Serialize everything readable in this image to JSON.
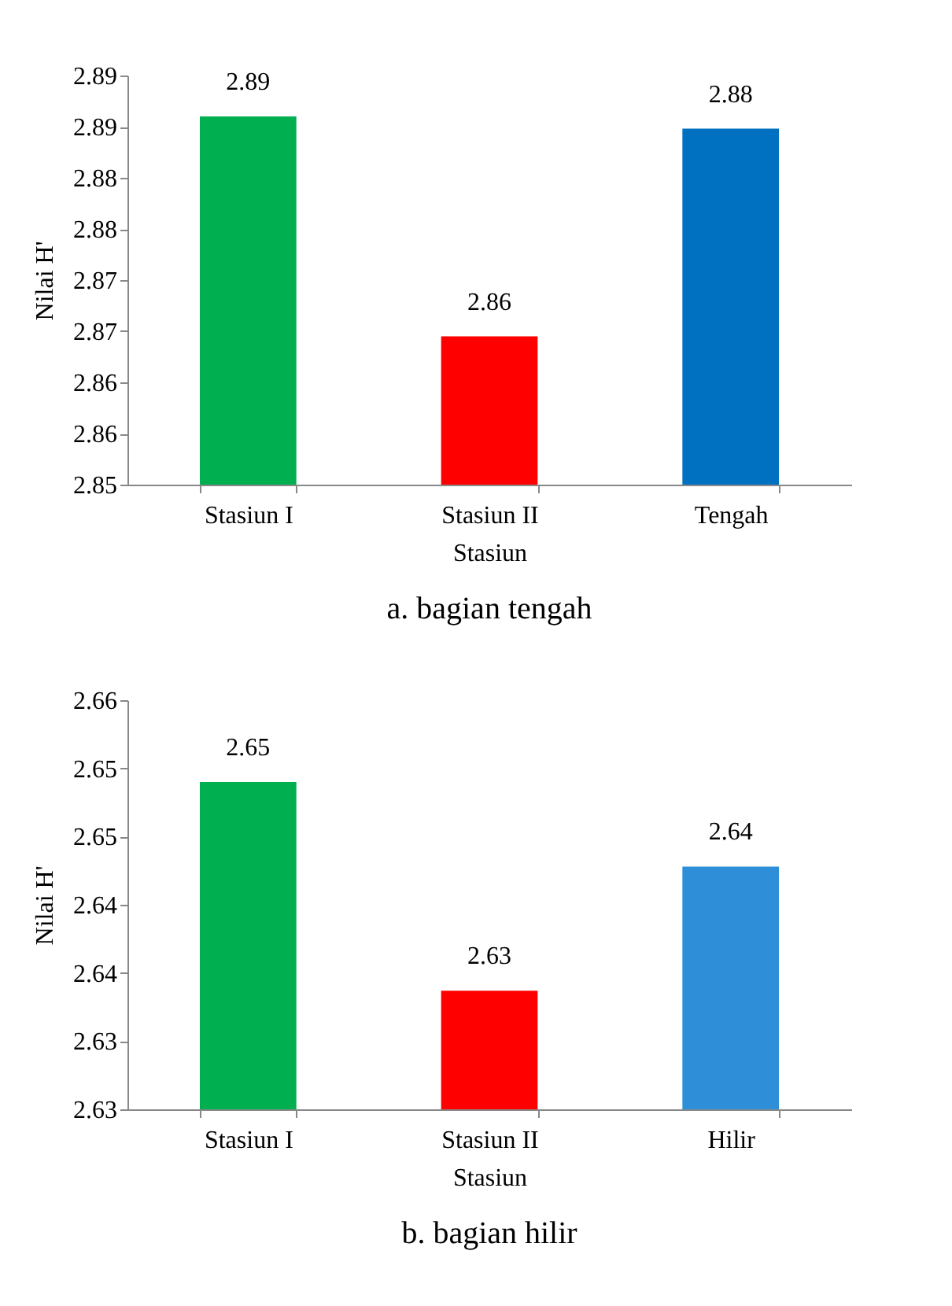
{
  "chart_data": [
    {
      "type": "bar",
      "title": "a.    bagian tengah",
      "xlabel": "Stasiun",
      "ylabel": "Nilai H'",
      "categories": [
        "Stasiun I",
        "Stasiun II",
        "Tengah"
      ],
      "values": [
        2.886,
        2.8645,
        2.8848
      ],
      "colors": [
        "#00b050",
        "#ff0000",
        "#0070c0"
      ],
      "value_labels": [
        "2.89",
        "2.86",
        "2.88"
      ],
      "ylim": [
        2.85,
        2.89
      ],
      "yticks": [
        2.85,
        {
          "value": 2.855,
          "label": "2.86"
        },
        2.86,
        {
          "value": 2.865,
          "label": "2.87"
        },
        2.87,
        {
          "value": 2.875,
          "label": "2.88"
        },
        2.88,
        {
          "value": 2.885,
          "label": "2.89"
        },
        2.89
      ]
    },
    {
      "type": "bar",
      "title": "b.  bagian hilir",
      "xlabel": "Stasiun",
      "ylabel": "Nilai H'",
      "categories": [
        "Stasiun I",
        "Stasiun II",
        "Hilir"
      ],
      "values": [
        2.649,
        2.6337,
        2.6428
      ],
      "colors": [
        "#00b050",
        "#ff0000",
        "#2e8fd8"
      ],
      "value_labels": [
        "2.65",
        "2.63",
        "2.64"
      ],
      "ylim": [
        2.625,
        2.655
      ],
      "yticks": [
        {
          "value": 2.625,
          "label": "2.63"
        },
        2.63,
        {
          "value": 2.635,
          "label": "2.64"
        },
        2.64,
        {
          "value": 2.645,
          "label": "2.65"
        },
        2.65,
        {
          "value": 2.655,
          "label": "2.66"
        }
      ]
    }
  ]
}
